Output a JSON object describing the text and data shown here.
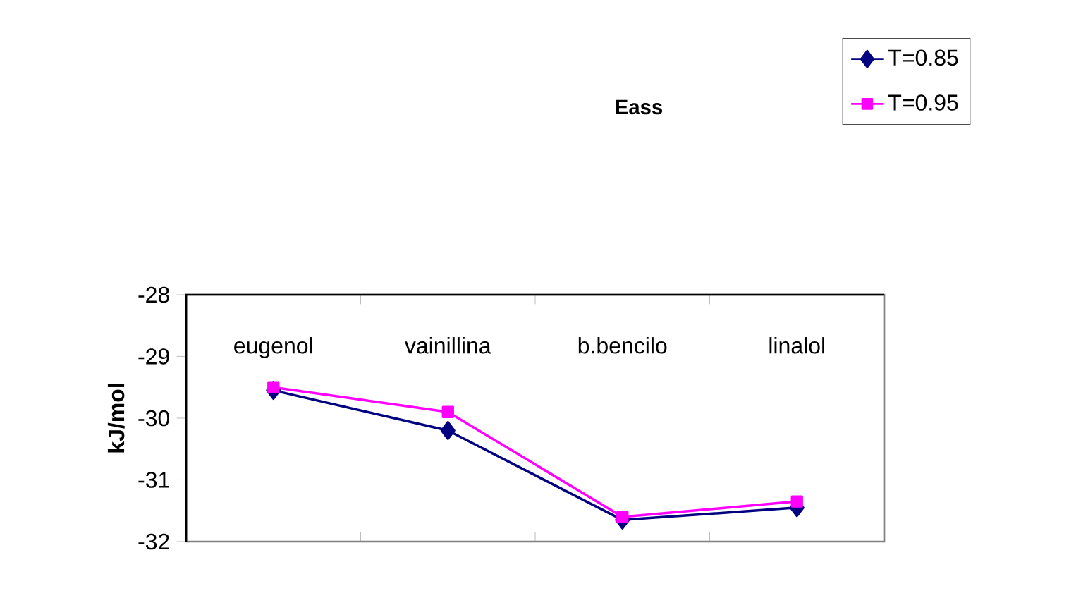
{
  "chart_data": {
    "type": "line",
    "title": "Eass",
    "ylabel": "kJ/mol",
    "categories": [
      "eugenol",
      "vainillina",
      "b.bencilo",
      "linalol"
    ],
    "series": [
      {
        "name": "T=0.85",
        "color": "#000080",
        "marker": "diamond",
        "values": [
          -29.55,
          -30.2,
          -31.65,
          -31.45
        ]
      },
      {
        "name": "T=0.95",
        "color": "#ff00ff",
        "marker": "square",
        "values": [
          -29.5,
          -29.9,
          -31.6,
          -31.35
        ]
      }
    ],
    "ylim": [
      -32,
      -28
    ],
    "yticks": [
      -32,
      -31,
      -30,
      -29,
      -28
    ],
    "grid": false,
    "legend": "top right"
  }
}
